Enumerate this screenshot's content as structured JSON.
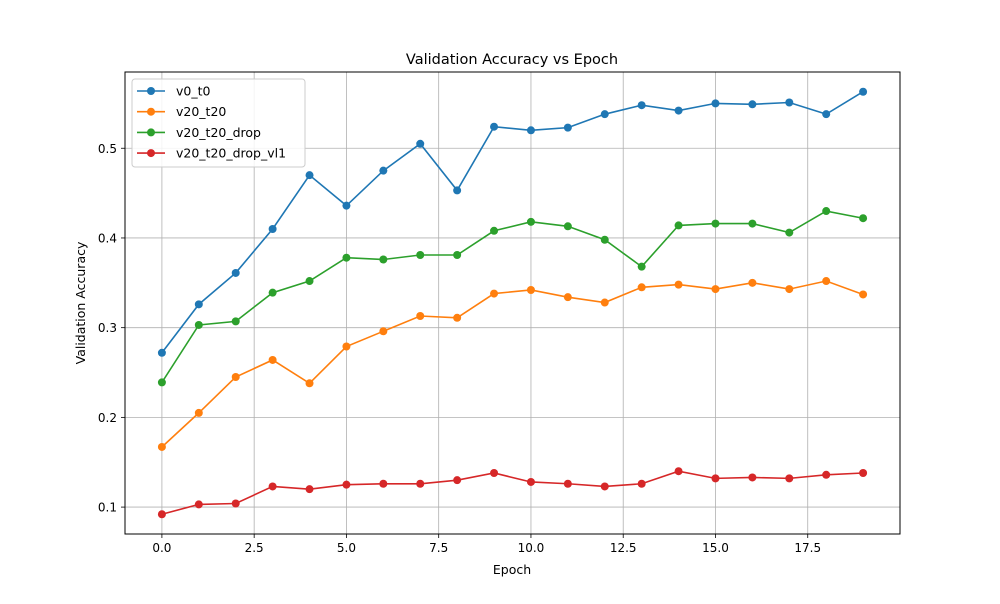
{
  "chart_data": {
    "type": "line",
    "title": "Validation Accuracy vs Epoch",
    "xlabel": "Epoch",
    "ylabel": "Validation Accuracy",
    "xlim": [
      -1.0,
      20.0
    ],
    "ylim": [
      0.07,
      0.585
    ],
    "xticks": [
      0.0,
      2.5,
      5.0,
      7.5,
      10.0,
      12.5,
      15.0,
      17.5
    ],
    "xtick_labels": [
      "0.0",
      "2.5",
      "5.0",
      "7.5",
      "10.0",
      "12.5",
      "15.0",
      "17.5"
    ],
    "yticks": [
      0.1,
      0.2,
      0.3,
      0.4,
      0.5
    ],
    "ytick_labels": [
      "0.1",
      "0.2",
      "0.3",
      "0.4",
      "0.5"
    ],
    "grid": true,
    "legend_position": "top-left",
    "x": [
      0,
      1,
      2,
      3,
      4,
      5,
      6,
      7,
      8,
      9,
      10,
      11,
      12,
      13,
      14,
      15,
      16,
      17,
      18,
      19
    ],
    "series": [
      {
        "name": "v0_t0",
        "color": "#1f77b4",
        "values": [
          0.272,
          0.326,
          0.361,
          0.41,
          0.47,
          0.436,
          0.475,
          0.505,
          0.453,
          0.524,
          0.52,
          0.523,
          0.538,
          0.548,
          0.542,
          0.55,
          0.549,
          0.551,
          0.538,
          0.563
        ]
      },
      {
        "name": "v20_t20",
        "color": "#ff7f0e",
        "values": [
          0.167,
          0.205,
          0.245,
          0.264,
          0.238,
          0.279,
          0.296,
          0.313,
          0.311,
          0.338,
          0.342,
          0.334,
          0.328,
          0.345,
          0.348,
          0.343,
          0.35,
          0.343,
          0.352,
          0.337
        ]
      },
      {
        "name": "v20_t20_drop",
        "color": "#2ca02c",
        "values": [
          0.239,
          0.303,
          0.307,
          0.339,
          0.352,
          0.378,
          0.376,
          0.381,
          0.381,
          0.408,
          0.418,
          0.413,
          0.398,
          0.368,
          0.414,
          0.416,
          0.416,
          0.406,
          0.43,
          0.422
        ]
      },
      {
        "name": "v20_t20_drop_vl1",
        "color": "#d62728",
        "values": [
          0.092,
          0.103,
          0.104,
          0.123,
          0.12,
          0.125,
          0.126,
          0.126,
          0.13,
          0.138,
          0.128,
          0.126,
          0.123,
          0.126,
          0.14,
          0.132,
          0.133,
          0.132,
          0.136,
          0.138
        ]
      }
    ]
  }
}
